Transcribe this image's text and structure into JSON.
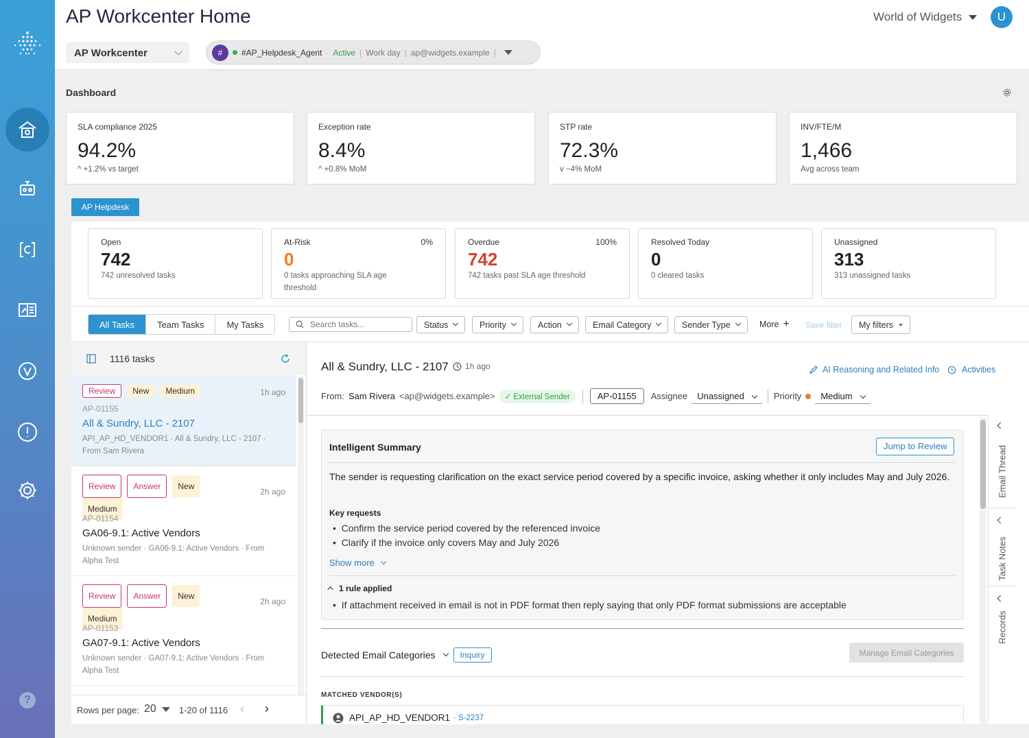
{
  "header": {
    "title": "AP Workcenter Home",
    "org": "World of Widgets",
    "avatar_initial": "U",
    "workcenter": "AP Workcenter"
  },
  "agent": {
    "badge": "#",
    "name": "#AP_Helpdesk_Agent",
    "status": "Active",
    "shift": "Work day",
    "email": "ap@widgets.example"
  },
  "dashboard": {
    "title": "Dashboard",
    "kpis": [
      {
        "label": "SLA compliance 2025",
        "value": "94.2%",
        "delta": "+1.2% vs target",
        "trend": "up"
      },
      {
        "label": "Exception rate",
        "value": "8.4%",
        "delta": "+0.8% MoM",
        "trend": "up-bad"
      },
      {
        "label": "STP rate",
        "value": "72.3%",
        "delta": "−4% MoM",
        "trend": "down-bad"
      },
      {
        "label": "INV/FTE/M",
        "value": "1,466",
        "delta": "Avg across team",
        "trend": "none"
      }
    ]
  },
  "helpdesk": {
    "tab": "AP Helpdesk",
    "cards": [
      {
        "label": "Open",
        "pct": "",
        "value": "742",
        "sub": "742 unresolved tasks",
        "color": "#222222"
      },
      {
        "label": "At-Risk",
        "pct": "0%",
        "value": "0",
        "sub": "0 tasks approaching SLA age threshold",
        "color": "#f07b26"
      },
      {
        "label": "Overdue",
        "pct": "100%",
        "value": "742",
        "sub": "742 tasks past SLA age threshold",
        "color": "#d6402d"
      },
      {
        "label": "Resolved Today",
        "pct": "",
        "value": "0",
        "sub": "0 cleared tasks",
        "color": "#222222"
      },
      {
        "label": "Unassigned",
        "pct": "",
        "value": "313",
        "sub": "313 unassigned tasks",
        "color": "#222222"
      }
    ]
  },
  "toolbar": {
    "tabs": [
      "All Tasks",
      "Team Tasks",
      "My Tasks"
    ],
    "search_placeholder": "Search tasks...",
    "filters": [
      "Status",
      "Priority",
      "Action",
      "Email Category",
      "Sender Type"
    ],
    "more": "More",
    "save_filter": "Save filter",
    "my_filters": "My filters"
  },
  "list": {
    "count": "1116 tasks",
    "tasks": [
      {
        "badges": [
          "Review",
          "New",
          "Medium"
        ],
        "ago": "1h ago",
        "id": "AP-01155",
        "title": "All & Sundry, LLC - 2107",
        "desc": "API_AP_HD_VENDOR1 · All & Sundry, LLC - 2107 · From Sam Rivera"
      },
      {
        "badges": [
          "Review",
          "Answer",
          "New",
          "Medium"
        ],
        "ago": "2h ago",
        "id": "AP-01154",
        "title": "GA06-9.1: Active Vendors",
        "desc": "Unknown sender · GA06-9.1: Active Vendors · From Alpha Test"
      },
      {
        "badges": [
          "Review",
          "Answer",
          "New",
          "Medium"
        ],
        "ago": "2h ago",
        "id": "AP-01153",
        "title": "GA07-9.1: Active Vendors",
        "desc": "Unknown sender · GA07-9.1: Active Vendors · From Alpha Test"
      }
    ],
    "rows_label": "Rows per page:",
    "rows_value": "20",
    "range": "1-20 of 1116"
  },
  "detail": {
    "title": "All & Sundry, LLC - 2107",
    "ago": "1h ago",
    "ai_link": "AI Reasoning and Related Info",
    "activities": "Activities",
    "from_label": "From:",
    "from_name": "Sam Rivera",
    "from_email": "<ap@widgets.example>",
    "ext": "External Sender",
    "task_id": "AP-01155",
    "assignee_label": "Assignee",
    "assignee": "Unassigned",
    "priority_label": "Priority",
    "priority": "Medium",
    "summary": {
      "title": "Intelligent Summary",
      "jump": "Jump to Review",
      "text": "The sender is requesting clarification on the exact service period covered by a specific invoice, asking whether it only includes May and July 2026.",
      "key_title": "Key requests",
      "keys": [
        "Confirm the service period covered by the referenced invoice",
        "Clarify if the invoice only covers May and July 2026"
      ],
      "show_more": "Show more",
      "rules_title": "1 rule applied",
      "rules": [
        "If attachment received in email is not in PDF format then reply saying that only PDF format submissions are acceptable"
      ]
    },
    "categories": {
      "label": "Detected Email Categories",
      "tag": "Inquiry",
      "manage": "Manage Email Categories"
    },
    "vendors": {
      "label": "MATCHED VENDOR(S)",
      "name": "API_AP_HD_VENDOR1",
      "code": "S-2237"
    },
    "side_tabs": [
      "Email Thread",
      "Task Notes",
      "Records"
    ]
  }
}
